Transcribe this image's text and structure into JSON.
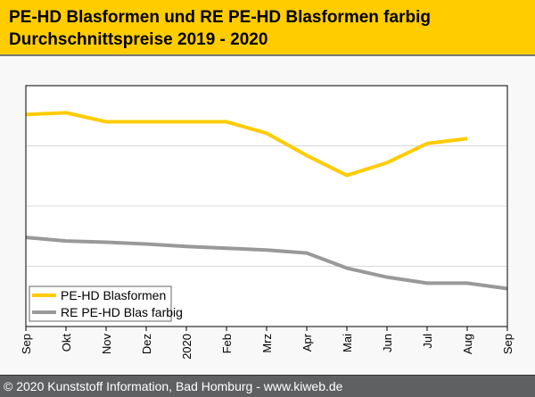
{
  "header": {
    "title_line1": "PE-HD Blasformen und RE PE-HD Blasformen farbig",
    "title_line2": "Durchschnittspreise 2019 - 2020"
  },
  "footer": {
    "text": "© 2020 Kunststoff Information, Bad Homburg - www.kiweb.de"
  },
  "chart_data": {
    "type": "line",
    "title": "PE-HD Blasformen und RE PE-HD Blasformen farbig Durchschnittspreise 2019 - 2020",
    "categories": [
      "Sep",
      "Okt",
      "Nov",
      "Dez",
      "2020",
      "Feb",
      "Mrz",
      "Apr",
      "Mai",
      "Jun",
      "Jul",
      "Aug",
      "Sep"
    ],
    "ylim": [
      0,
      4
    ],
    "y_units_note": "relative (no y-axis labels shown)",
    "grid": true,
    "legend_position": "bottom-left",
    "series": [
      {
        "name": "PE-HD Blasformen",
        "color": "#ffcc00",
        "values": [
          3.52,
          3.55,
          3.4,
          3.4,
          3.4,
          3.4,
          3.21,
          2.84,
          2.51,
          2.72,
          3.04,
          3.12,
          null
        ]
      },
      {
        "name": "RE PE-HD Blas farbig",
        "color": "#999999",
        "values": [
          1.48,
          1.42,
          1.4,
          1.37,
          1.33,
          1.3,
          1.27,
          1.22,
          0.97,
          0.82,
          0.72,
          0.72,
          0.63
        ]
      }
    ]
  }
}
